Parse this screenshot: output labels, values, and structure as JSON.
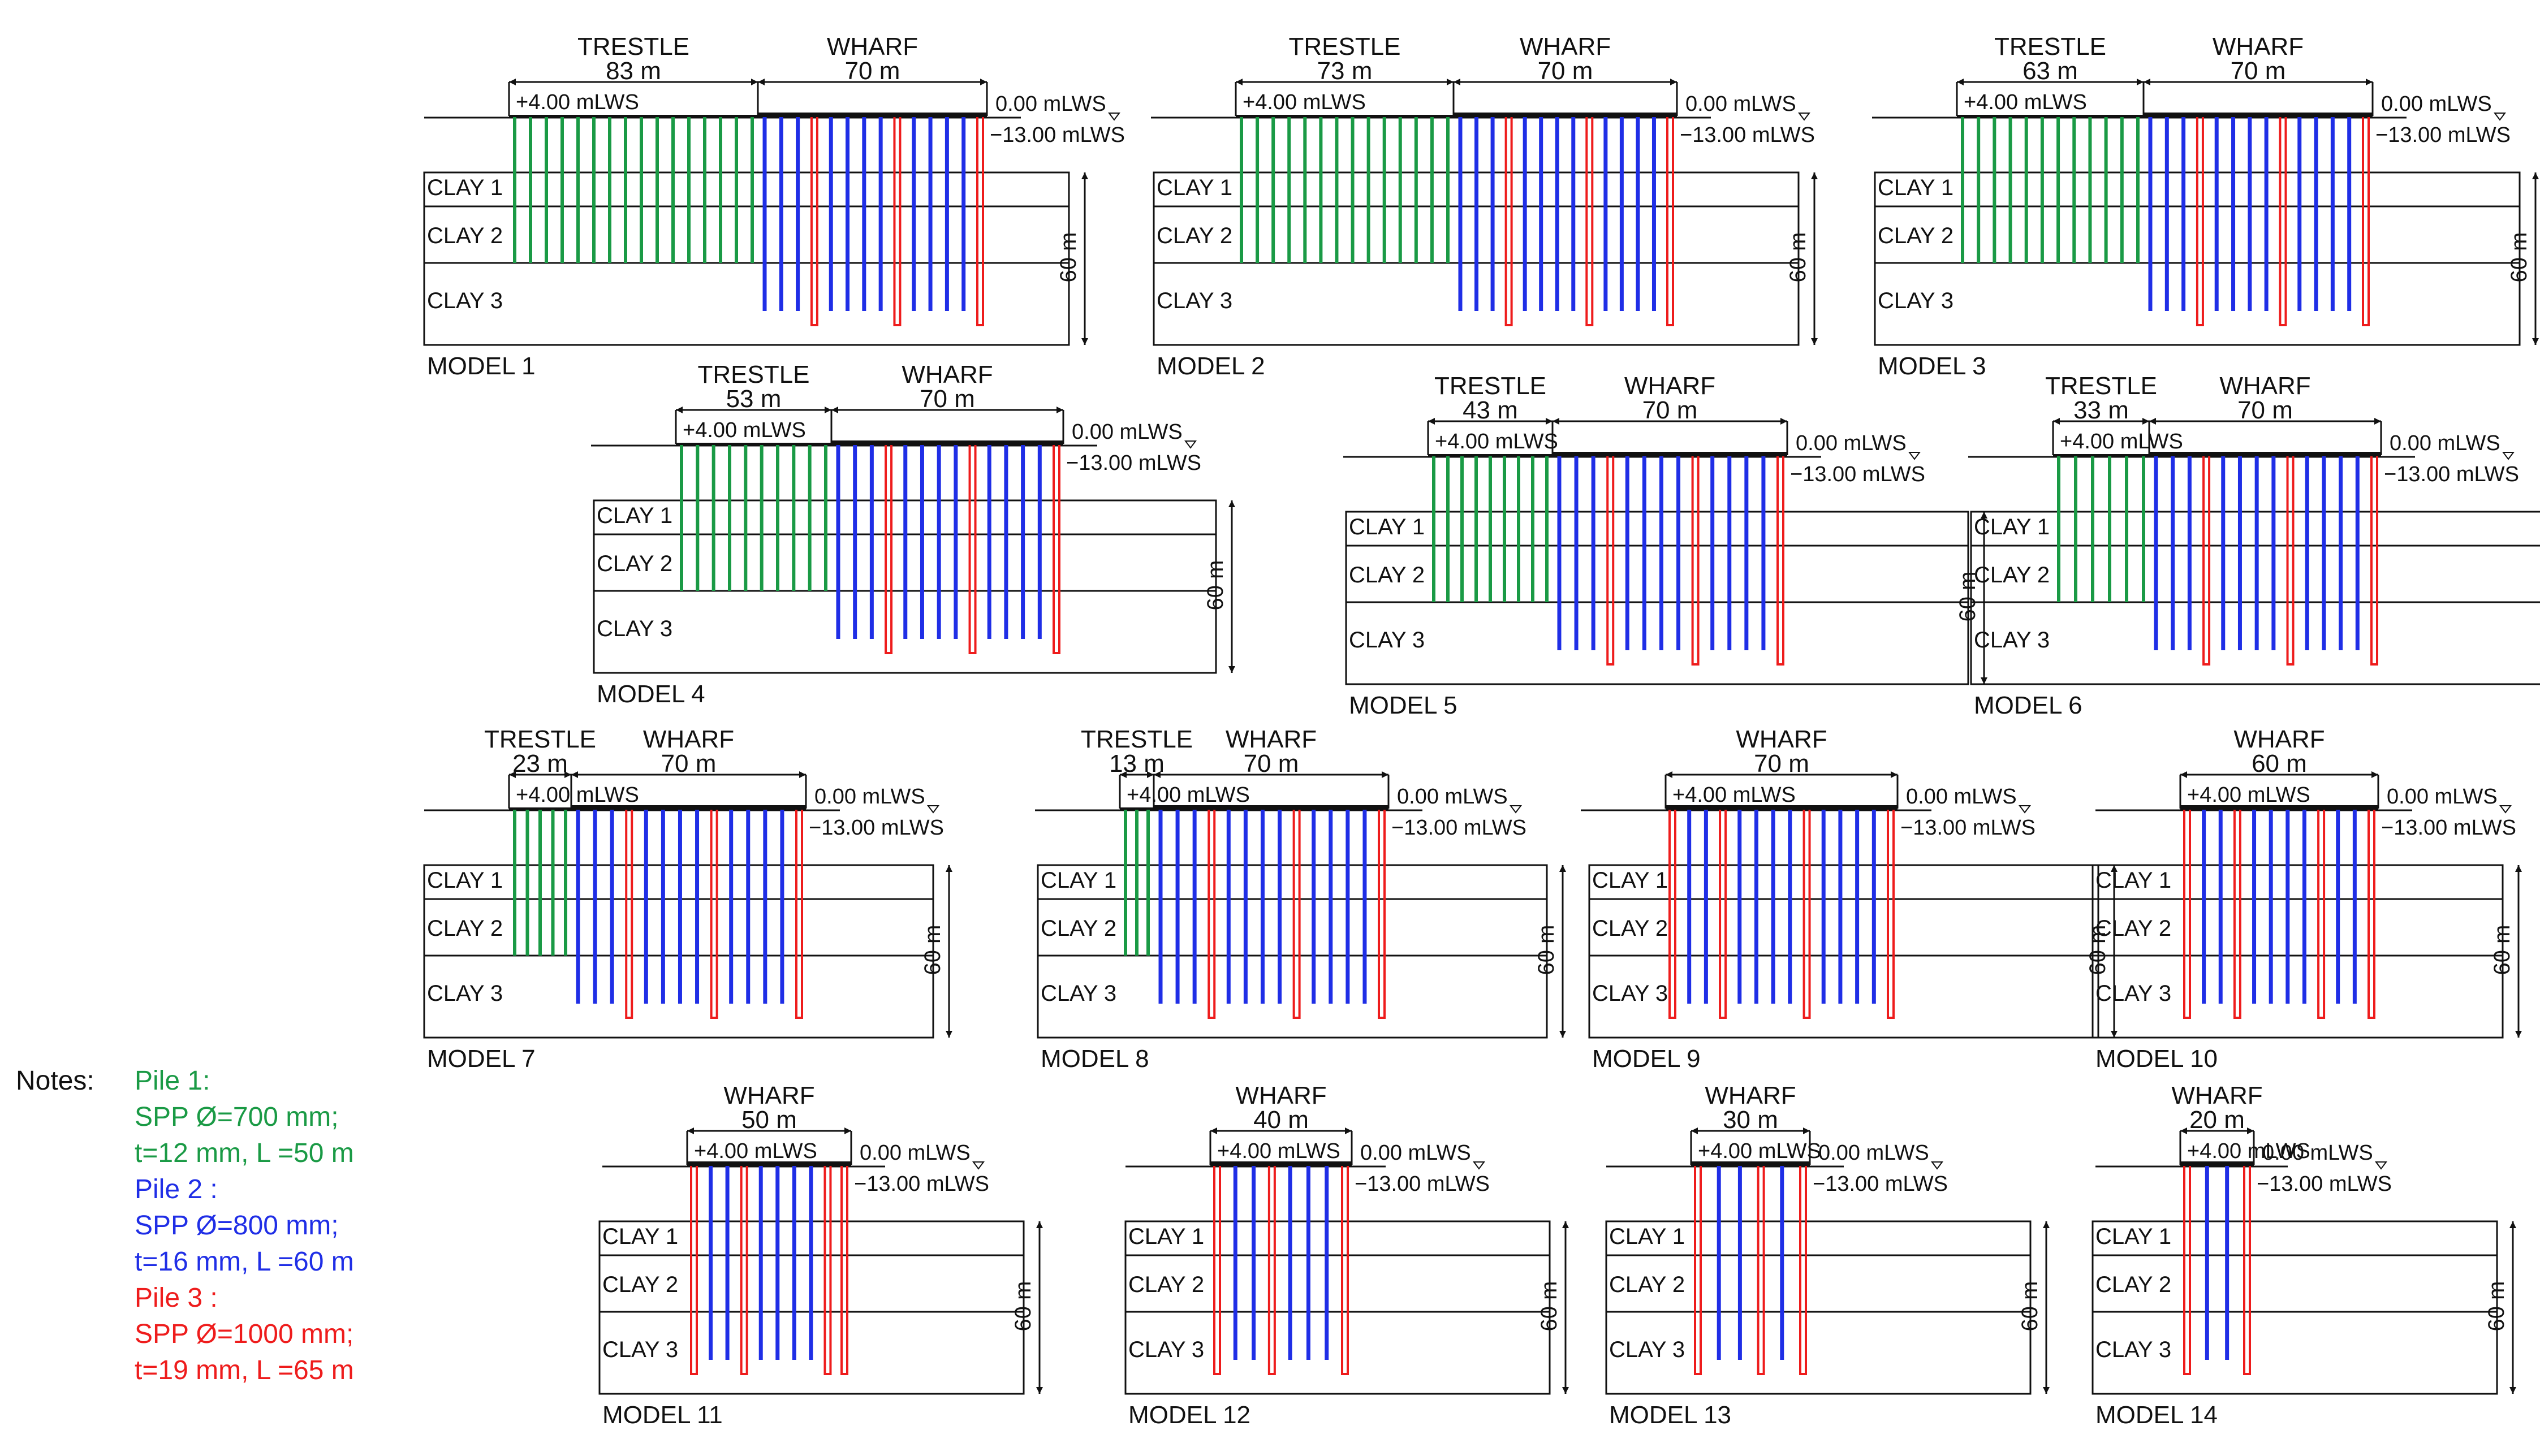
{
  "labels": {
    "trestle": "TRESTLE",
    "wharf": "WHARF",
    "deck_level": "+4.00 mLWS",
    "water_level": "0.00 mLWS",
    "seabed_level": "−13.00 mLWS",
    "depth": "60 m",
    "clay_layers": [
      "CLAY 1",
      "CLAY 2",
      "CLAY 3"
    ]
  },
  "models": [
    {
      "name": "MODEL 1",
      "trestle_len": "83 m",
      "wharf_len": "70 m"
    },
    {
      "name": "MODEL 2",
      "trestle_len": "73 m",
      "wharf_len": "70 m"
    },
    {
      "name": "MODEL 3",
      "trestle_len": "63 m",
      "wharf_len": "70 m"
    },
    {
      "name": "MODEL 4",
      "trestle_len": "53 m",
      "wharf_len": "70 m"
    },
    {
      "name": "MODEL 5",
      "trestle_len": "43 m",
      "wharf_len": "70 m"
    },
    {
      "name": "MODEL 6",
      "trestle_len": "33 m",
      "wharf_len": "70 m"
    },
    {
      "name": "MODEL 7",
      "trestle_len": "23 m",
      "wharf_len": "70 m"
    },
    {
      "name": "MODEL 8",
      "trestle_len": "13 m",
      "wharf_len": "70 m"
    },
    {
      "name": "MODEL 9",
      "trestle_len": null,
      "wharf_len": "70 m"
    },
    {
      "name": "MODEL 10",
      "trestle_len": null,
      "wharf_len": "60 m"
    },
    {
      "name": "MODEL 11",
      "trestle_len": null,
      "wharf_len": "50 m"
    },
    {
      "name": "MODEL 12",
      "trestle_len": null,
      "wharf_len": "40 m"
    },
    {
      "name": "MODEL 13",
      "trestle_len": null,
      "wharf_len": "30 m"
    },
    {
      "name": "MODEL 14",
      "trestle_len": null,
      "wharf_len": "20 m"
    }
  ],
  "notes": {
    "label": "Notes:",
    "piles": [
      {
        "title": "Pile 1:",
        "line1": "SPP Ø=700 mm;",
        "line2": "t=12 mm, L =50 m",
        "color": "#1a9a45"
      },
      {
        "title": "Pile 2 :",
        "line1": "SPP Ø=800 mm;",
        "line2": "t=16 mm, L =60 m",
        "color": "#1f2ee6"
      },
      {
        "title": "Pile 3 :",
        "line1": "SPP Ø=1000 mm;",
        "line2": "t=19 mm, L =65 m",
        "color": "#ee1c1c"
      }
    ]
  },
  "colors": {
    "pile1": "#1a9a45",
    "pile2": "#1f2ee6",
    "pile3": "#ee1c1c",
    "line": "#111111"
  }
}
